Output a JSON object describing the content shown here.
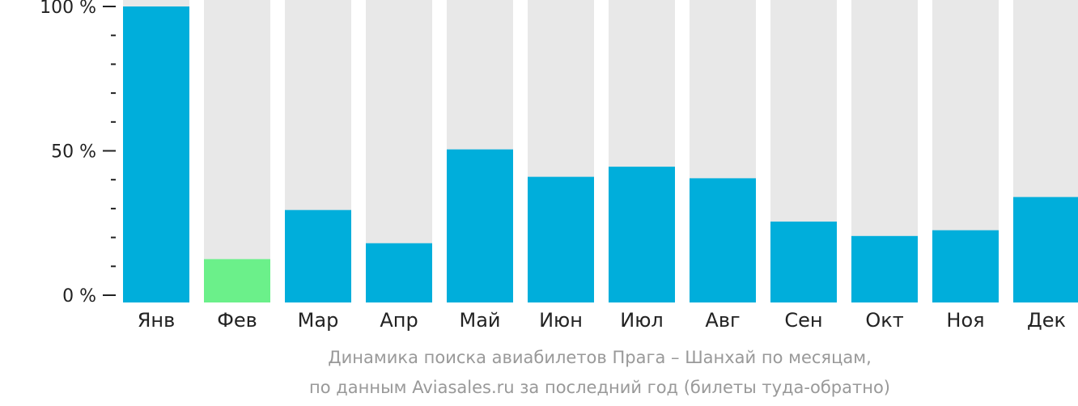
{
  "chart_data": {
    "type": "bar",
    "categories": [
      "Янв",
      "Фев",
      "Мар",
      "Апр",
      "Май",
      "Июн",
      "Июл",
      "Авг",
      "Сен",
      "Окт",
      "Ноя",
      "Дек"
    ],
    "values": [
      100,
      12.5,
      29.5,
      18,
      50.5,
      41,
      44.5,
      40.5,
      25.5,
      20.5,
      22.5,
      34
    ],
    "ylim": [
      0,
      100
    ],
    "yticks": [
      {
        "value": 0,
        "label": "0 %"
      },
      {
        "value": 50,
        "label": "50 %"
      },
      {
        "value": 100,
        "label": "100 %"
      }
    ],
    "minor_tick_step": 10,
    "highlight_index": 1,
    "colors": {
      "bar": "#00AEDB",
      "highlight": "#6BF08A",
      "background_bar": "#E8E8E8",
      "axis": "#222222"
    },
    "grid": false,
    "legend": "none"
  },
  "caption": {
    "line1": "Динамика поиска авиабилетов Прага – Шанхай по месяцам,",
    "line2": "по данным Aviasales.ru за последний год (билеты туда-обратно)"
  }
}
